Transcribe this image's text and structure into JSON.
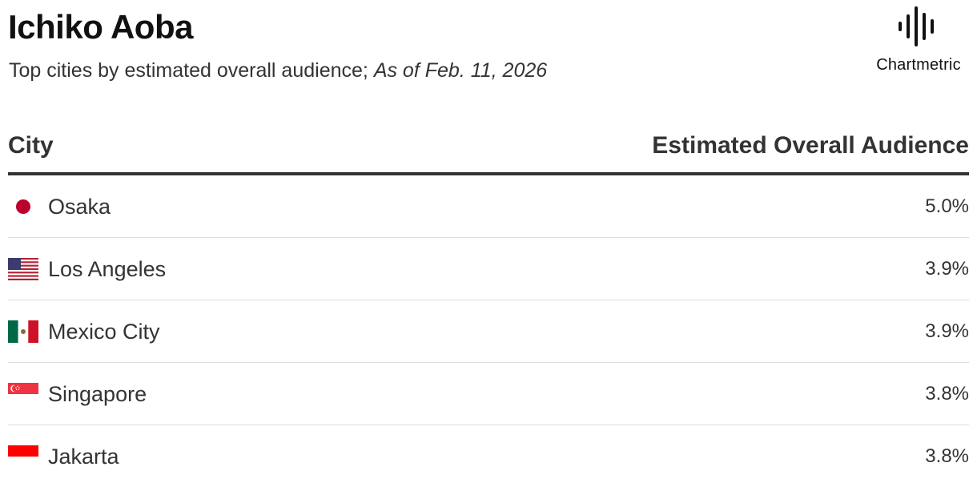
{
  "header": {
    "title": "Ichiko Aoba",
    "subtitle": "Top cities by estimated overall audience;",
    "date": "As of Feb. 11, 2026"
  },
  "logo": {
    "name": "Chartmetric",
    "icon": "soundwave-icon"
  },
  "table": {
    "columns": [
      "City",
      "Estimated Overall Audience"
    ],
    "rows": [
      {
        "flag": "japan-flag-icon",
        "city": "Osaka",
        "value": "5.0%"
      },
      {
        "flag": "usa-flag-icon",
        "city": "Los Angeles",
        "value": "3.9%"
      },
      {
        "flag": "mexico-flag-icon",
        "city": "Mexico City",
        "value": "3.9%"
      },
      {
        "flag": "singapore-flag-icon",
        "city": "Singapore",
        "value": "3.8%"
      },
      {
        "flag": "indonesia-flag-icon",
        "city": "Jakarta",
        "value": "3.8%"
      }
    ]
  },
  "chart_data": {
    "type": "table",
    "title": "Ichiko Aoba",
    "columns": [
      "City",
      "Estimated Overall Audience"
    ],
    "categories": [
      "Osaka",
      "Los Angeles",
      "Mexico City",
      "Singapore",
      "Jakarta"
    ],
    "values": [
      5.0,
      3.9,
      3.9,
      3.8,
      3.8
    ],
    "unit": "%"
  },
  "colors": {
    "japan_red": "#bc002d",
    "usa_red": "#b22234",
    "usa_blue": "#3c3b6e",
    "mexico_green": "#006847",
    "mexico_red": "#ce1126",
    "singapore_red": "#ef3340",
    "indonesia_red": "#ff0000",
    "header_rule": "#333333",
    "row_divider": "#dddddd"
  }
}
